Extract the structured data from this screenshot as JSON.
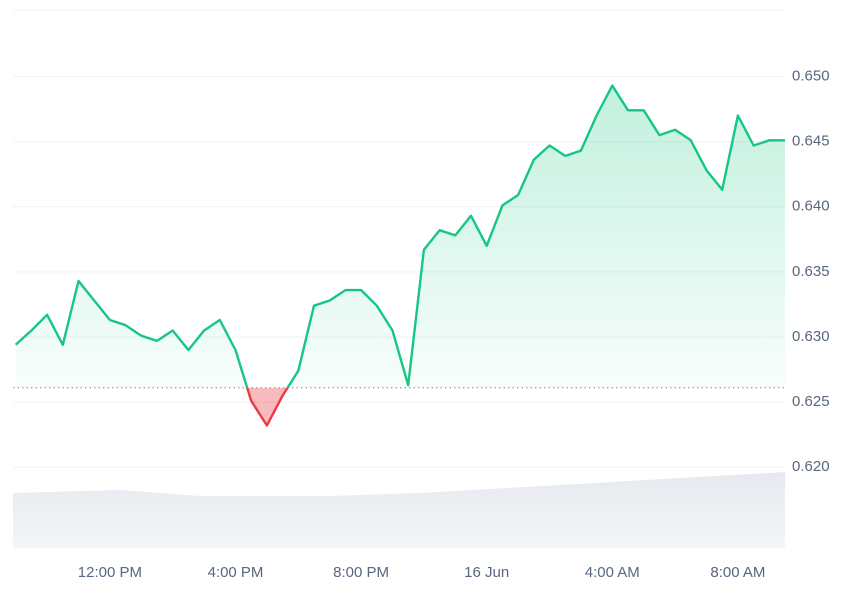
{
  "chart_data": {
    "type": "line",
    "categories": [
      null,
      null,
      null,
      null,
      null,
      null,
      "12:00 PM",
      null,
      null,
      null,
      null,
      null,
      null,
      null,
      "4:00 PM",
      null,
      null,
      null,
      null,
      null,
      null,
      null,
      "8:00 PM",
      null,
      null,
      null,
      null,
      null,
      null,
      null,
      "16 Jun",
      null,
      null,
      null,
      null,
      null,
      null,
      null,
      "4:00 AM",
      null,
      null,
      null,
      null,
      null,
      null,
      null,
      "8:00 AM",
      null,
      null,
      null
    ],
    "values": [
      0.6294,
      0.6305,
      0.6317,
      0.6294,
      0.6343,
      0.6328,
      0.6313,
      0.6309,
      0.6301,
      0.6297,
      0.6305,
      0.629,
      0.6305,
      0.6313,
      0.629,
      0.6251,
      0.6232,
      0.6255,
      0.6274,
      0.6324,
      0.6328,
      0.6336,
      0.6336,
      0.6324,
      0.6305,
      0.6263,
      0.6367,
      0.6382,
      0.6378,
      0.6393,
      0.637,
      0.6401,
      0.6409,
      0.6436,
      0.6447,
      0.6439,
      0.6443,
      0.647,
      0.6493,
      0.6474,
      0.6474,
      0.6455,
      0.6459,
      0.6451,
      0.6428,
      0.6413,
      0.647,
      0.6447,
      0.6451,
      0.6451
    ],
    "color": "#16c784",
    "below_color": "#ea3943",
    "baseline": 0.6261,
    "ylim": [
      0.6138,
      0.6551
    ],
    "yticks": [
      {
        "value": 0.62,
        "label": "0.620"
      },
      0.625,
      {
        "value": 0.63,
        "label": "0.630"
      },
      0.635,
      {
        "value": 0.64,
        "label": "0.640"
      },
      0.645,
      {
        "value": 0.65,
        "label": "0.650"
      }
    ],
    "grid": true
  }
}
